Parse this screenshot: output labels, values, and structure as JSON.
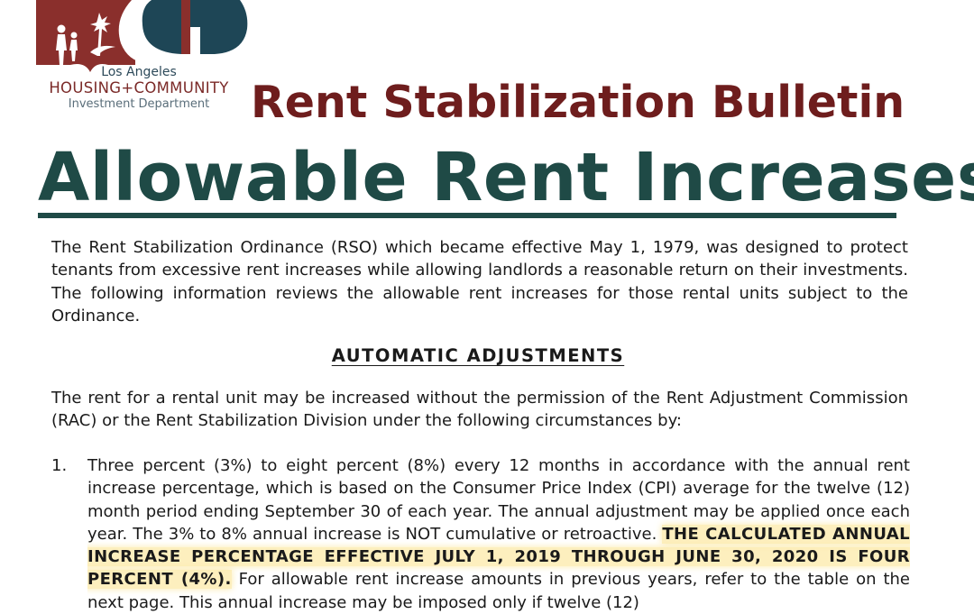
{
  "logo": {
    "city": "Los Angeles",
    "name": "HOUSING+COMMUNITY",
    "department": "Investment Department",
    "colors": {
      "red": "#8a2f2c",
      "blue": "#1e4656",
      "white": "#ffffff"
    }
  },
  "header": {
    "bulletin_title": "Rent Stabilization Bulletin",
    "main_title": "Allowable Rent Increases"
  },
  "intro": "The Rent Stabilization Ordinance (RSO) which became effective May 1, 1979, was designed to protect tenants from excessive rent increases while allowing landlords a reasonable return on their investments. The following information reviews the allowable rent increases for those rental units subject to the Ordinance.",
  "section": {
    "heading": "AUTOMATIC ADJUSTMENTS",
    "lead": "The rent for a rental unit may be increased without the permission of the Rent Adjustment Commission (RAC) or the Rent Stabilization Division under the following circumstances by:"
  },
  "item1": {
    "number": "1.",
    "text_a": "Three percent (3%) to eight percent (8%) every 12 months in accordance with the annual rent increase percentage, which is based on the Consumer Price Index (CPI) average for the twelve (12) month period ending September 30 of each year. The annual adjustment may be applied once each year. The 3% to 8% annual increase is NOT cumulative or retroactive.",
    "highlight": "THE CALCULATED ANNUAL INCREASE PERCENTAGE EFFECTIVE JULY 1, 2019 THROUGH JUNE 30, 2020 IS FOUR PERCENT (4%).",
    "text_b": "For allowable rent increase amounts in previous years, refer to the table on the next page. This annual increase may be imposed only if twelve (12)"
  },
  "highlight_color": "#fadc6e"
}
